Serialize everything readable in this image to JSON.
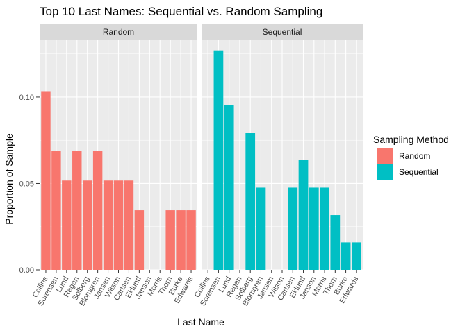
{
  "chart_data": {
    "type": "bar",
    "title": "Top 10 Last Names: Sequential vs. Random Sampling",
    "xlabel": "Last Name",
    "ylabel": "Proportion of Sample",
    "ylim": [
      0,
      0.1333
    ],
    "yticks": [
      "0.00",
      "0.05",
      "0.10"
    ],
    "ytick_values": [
      0,
      0.05,
      0.1
    ],
    "grid": true,
    "legend": {
      "title": "Sampling Method",
      "placement": "right"
    },
    "categories": [
      "Collins",
      "Sorensen",
      "Lund",
      "Regan",
      "Solberg",
      "Blomgren",
      "Jansen",
      "Wilson",
      "Carlsen",
      "Eklund",
      "Janson",
      "Morris",
      "Thorn",
      "Burke",
      "Edwards"
    ],
    "series": [
      {
        "name": "Random",
        "color": "#F8766D",
        "values": [
          0.1034,
          0.069,
          0.0517,
          0.069,
          0.0517,
          0.069,
          0.0517,
          0.0517,
          0.0517,
          0.0345,
          0,
          0,
          0.0345,
          0.0345,
          0.0345
        ]
      },
      {
        "name": "Sequential",
        "color": "#00BFC4",
        "values": [
          0,
          0.127,
          0.0952,
          0,
          0.0794,
          0.0476,
          0,
          0,
          0.0476,
          0.0635,
          0.0476,
          0.0476,
          0.0317,
          0.0159,
          0.0159
        ]
      }
    ]
  },
  "colors": {
    "panel_bg": "#EBEBEB",
    "strip_bg": "#D9D9D9",
    "grid": "#FFFFFF"
  }
}
